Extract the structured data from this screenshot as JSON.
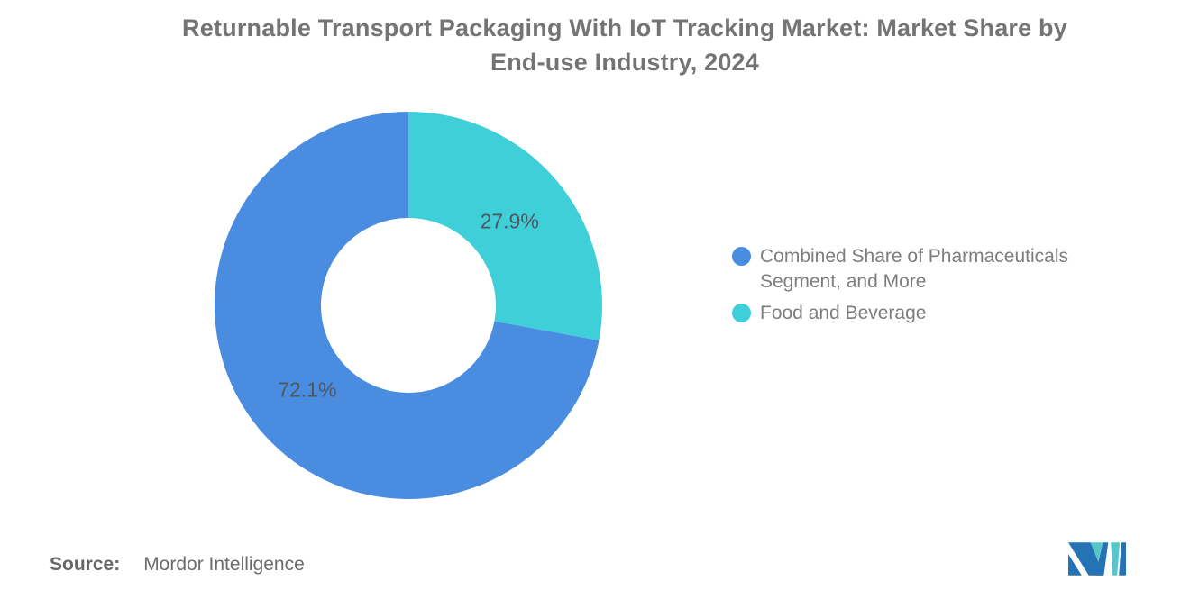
{
  "title": {
    "full": "Returnable Transport Packaging With IoT Tracking Market: Market Share by End-use Industry, 2024",
    "line1": "Returnable Transport Packaging With IoT Tracking Market: Market Share by",
    "line2": "End-use Industry, 2024"
  },
  "chart_data": {
    "type": "pie",
    "subtype": "donut",
    "title": "Returnable Transport Packaging With IoT Tracking Market: Market Share by End-use Industry, 2024",
    "total": 100,
    "start_angle_deg": 0,
    "direction": "clockwise",
    "legend_position": "right",
    "slices": [
      {
        "label": "Food and Beverage",
        "value": 27.9,
        "display_value": "27.9%",
        "color": "#3fcfd9"
      },
      {
        "label": "Combined Share of Pharmaceuticals Segment, and More",
        "value": 72.1,
        "display_value": "72.1%",
        "color": "#4a8ce0"
      }
    ]
  },
  "legend": {
    "items": [
      {
        "label": "Combined Share of Pharmaceuticals Segment, and More",
        "color": "#4a8ce0"
      },
      {
        "label": "Food and Beverage",
        "color": "#3fcfd9"
      }
    ]
  },
  "source": {
    "label": "Source:",
    "value": "Mordor Intelligence"
  },
  "logo": {
    "name": "Mordor Intelligence",
    "colors": {
      "blue": "#2473b5",
      "teal": "#56c6c8"
    }
  }
}
